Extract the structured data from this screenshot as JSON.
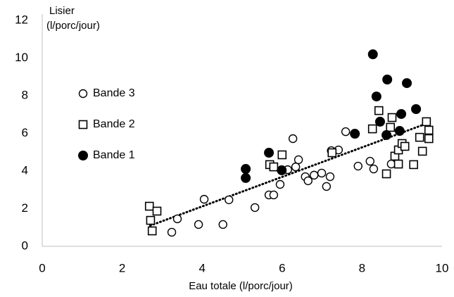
{
  "chart_data": {
    "type": "scatter",
    "y_label": [
      "Lisier",
      "(l/porc/jour)"
    ],
    "x_label": "Eau totale (l/porc/jour)",
    "xlim": [
      0,
      10
    ],
    "xticks": [
      0,
      2,
      4,
      6,
      8,
      10
    ],
    "ylim": [
      0,
      12
    ],
    "yticks": [
      0,
      2,
      4,
      6,
      8,
      10,
      12
    ],
    "grid": false,
    "legend": "left",
    "series": [
      {
        "name": "Bande 3",
        "color": "#000000",
        "marker": "circle-open",
        "x": [
          3.24,
          3.38,
          3.91,
          4.05,
          4.52,
          4.67,
          5.32,
          5.67,
          5.79,
          5.95,
          6.14,
          6.34,
          6.41,
          6.27,
          6.58,
          6.65,
          6.8,
          6.99,
          7.11,
          7.2,
          7.23,
          7.41,
          7.59,
          7.9,
          8.2,
          8.29,
          8.73
        ],
        "values": [
          0.75,
          1.46,
          1.16,
          2.5,
          1.16,
          2.47,
          2.06,
          2.73,
          2.73,
          3.29,
          4.07,
          4.22,
          4.6,
          5.72,
          3.7,
          3.48,
          3.78,
          3.89,
          3.18,
          3.7,
          5.08,
          5.12,
          6.09,
          4.26,
          4.52,
          4.11,
          4.37
        ]
      },
      {
        "name": "Bande 2",
        "color": "#000000",
        "marker": "square-open",
        "x": [
          2.68,
          2.71,
          2.75,
          2.87,
          5.69,
          5.79,
          6.0,
          7.25,
          8.42,
          8.26,
          8.71,
          8.75,
          8.82,
          8.91,
          8.91,
          9.0,
          9.07,
          8.61,
          9.29,
          9.44,
          9.51,
          9.61,
          9.67,
          9.67
        ],
        "values": [
          2.13,
          1.38,
          0.82,
          1.87,
          4.34,
          4.22,
          4.86,
          4.97,
          7.21,
          6.24,
          6.32,
          6.84,
          4.79,
          5.12,
          4.37,
          5.46,
          5.31,
          3.85,
          4.34,
          5.79,
          5.05,
          6.62,
          6.17,
          5.72
        ]
      },
      {
        "name": "Bande 1",
        "color": "#000000",
        "marker": "circle-filled",
        "x": [
          5.09,
          5.09,
          5.67,
          5.99,
          7.82,
          8.27,
          8.36,
          8.45,
          8.63,
          8.61,
          8.94,
          8.98,
          9.12,
          9.35
        ],
        "values": [
          4.11,
          3.63,
          4.97,
          4.04,
          5.98,
          10.2,
          7.96,
          6.62,
          8.86,
          5.91,
          6.13,
          7.03,
          8.67,
          7.29
        ]
      }
    ],
    "trendline": {
      "x": [
        2.7,
        9.65
      ],
      "values": [
        1.1,
        6.55
      ],
      "color": "#000000",
      "style": "dotted"
    }
  }
}
